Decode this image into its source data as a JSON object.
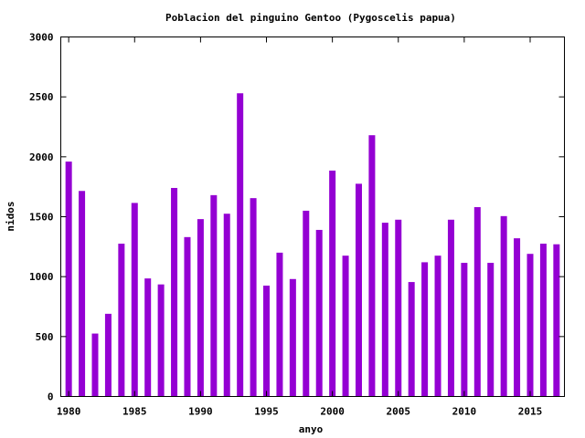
{
  "chart_data": {
    "type": "bar",
    "title": "Poblacion del pinguino Gentoo (Pygoscelis papua)",
    "xlabel": "anyo",
    "ylabel": "nidos",
    "xlim": [
      1979.4,
      2017.6
    ],
    "ylim": [
      0,
      3000
    ],
    "xticks": [
      1980,
      1985,
      1990,
      1995,
      2000,
      2005,
      2010,
      2015
    ],
    "yticks": [
      0,
      500,
      1000,
      1500,
      2000,
      2500,
      3000
    ],
    "grid": false,
    "bar_color": "#9400d3",
    "categories": [
      1980,
      1981,
      1982,
      1983,
      1984,
      1985,
      1986,
      1987,
      1988,
      1989,
      1990,
      1991,
      1992,
      1993,
      1994,
      1995,
      1996,
      1997,
      1998,
      1999,
      2000,
      2001,
      2002,
      2003,
      2004,
      2005,
      2006,
      2007,
      2008,
      2009,
      2010,
      2011,
      2012,
      2013,
      2014,
      2015,
      2016,
      2017
    ],
    "values": [
      1960,
      1715,
      525,
      690,
      1275,
      1615,
      985,
      935,
      1740,
      1330,
      1480,
      1680,
      1525,
      2530,
      1655,
      925,
      1200,
      980,
      1550,
      1390,
      1885,
      1175,
      1775,
      2180,
      1450,
      1475,
      955,
      1120,
      1175,
      1475,
      1115,
      1580,
      1115,
      1505,
      1320,
      1190,
      1275,
      1270
    ]
  }
}
